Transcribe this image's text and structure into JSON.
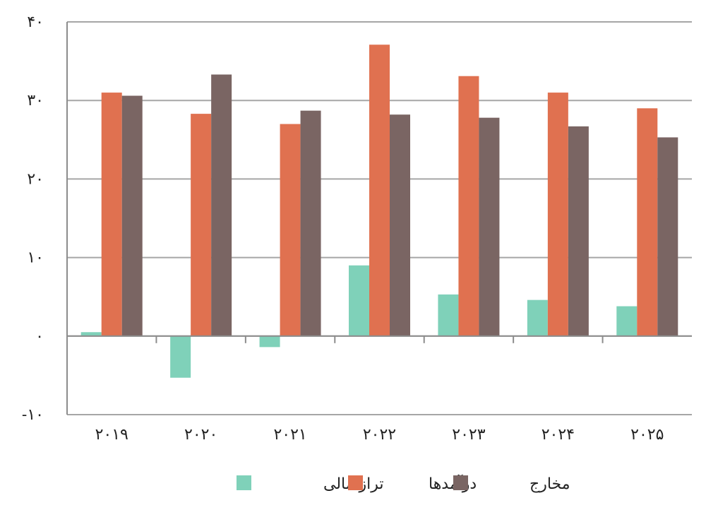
{
  "chart_data": {
    "type": "bar",
    "categories": [
      "۲۰۱۹",
      "۲۰۲۰",
      "۲۰۲۱",
      "۲۰۲۲",
      "۲۰۲۳",
      "۲۰۲۴",
      "۲۰۲۵"
    ],
    "series": [
      {
        "name": "تراز مالی",
        "color": "#7fd1b9",
        "values": [
          0.5,
          -5.3,
          -1.4,
          9.0,
          5.3,
          4.6,
          3.8
        ]
      },
      {
        "name": "درآمدها",
        "color": "#e07150",
        "values": [
          31.0,
          28.3,
          27.0,
          37.1,
          33.1,
          31.0,
          29.0
        ]
      },
      {
        "name": "مخارج",
        "color": "#7a6563",
        "values": [
          30.6,
          33.3,
          28.7,
          28.2,
          27.8,
          26.7,
          25.3
        ]
      }
    ],
    "yticks": [
      -10,
      0,
      10,
      20,
      30,
      40
    ],
    "ytick_labels": [
      "-۱۰",
      "۰",
      "۱۰",
      "۲۰",
      "۳۰",
      "۴۰"
    ],
    "ylim": [
      -10,
      40
    ],
    "grid": true,
    "legend_position": "bottom",
    "title": "",
    "xlabel": "",
    "ylabel": ""
  }
}
